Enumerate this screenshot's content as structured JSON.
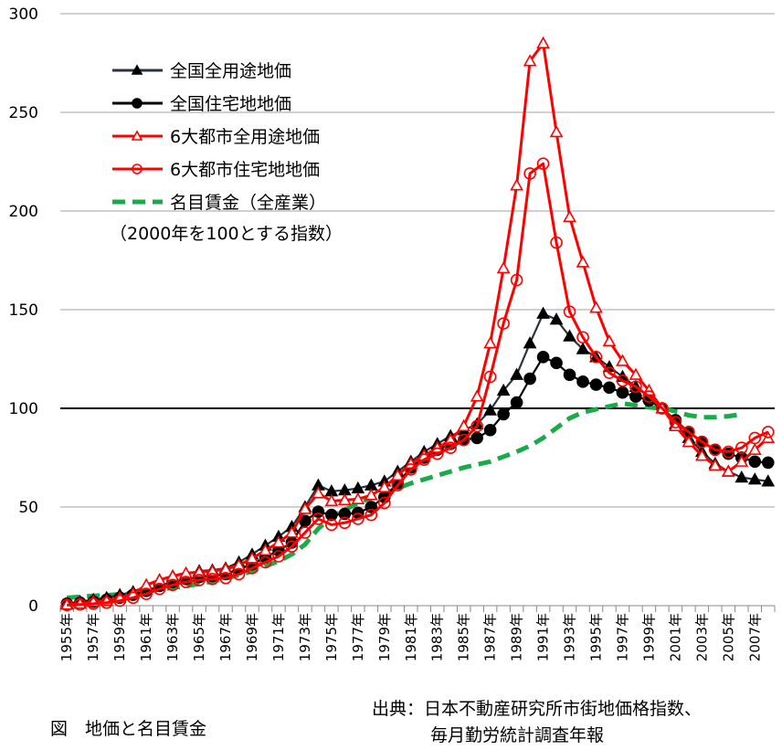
{
  "chart_data": {
    "type": "line",
    "title": "図　地価と名目賃金",
    "note": "（2000年を100とする指数）",
    "source_line1": "出典：日本不動産研究所市街地価格指数、",
    "source_line2": "毎月勤労統計調査年報",
    "xlabel": "",
    "ylabel": "",
    "ylim": [
      0,
      300
    ],
    "yticks": [
      "0",
      "50",
      "100",
      "150",
      "200",
      "250",
      "300"
    ],
    "ytick_values": [
      0,
      50,
      100,
      150,
      200,
      250,
      300
    ],
    "grid": true,
    "reference_line": 100,
    "legend_position": "top-left",
    "x": [
      1955,
      1956,
      1957,
      1958,
      1959,
      1960,
      1961,
      1962,
      1963,
      1964,
      1965,
      1966,
      1967,
      1968,
      1969,
      1970,
      1971,
      1972,
      1973,
      1974,
      1975,
      1976,
      1977,
      1978,
      1979,
      1980,
      1981,
      1982,
      1983,
      1984,
      1985,
      1986,
      1987,
      1988,
      1989,
      1990,
      1991,
      1992,
      1993,
      1994,
      1995,
      1996,
      1997,
      1998,
      1999,
      2000,
      2001,
      2002,
      2003,
      2004,
      2005,
      2006,
      2007,
      2008
    ],
    "xtick_labels": [
      "1955年",
      "1957年",
      "1959年",
      "1961年",
      "1963年",
      "1965年",
      "1967年",
      "1969年",
      "1971年",
      "1973年",
      "1975年",
      "1977年",
      "1979年",
      "1981年",
      "1983年",
      "1985年",
      "1987年",
      "1989年",
      "1991年",
      "1993年",
      "1995年",
      "1997年",
      "1999年",
      "2001年",
      "2003年",
      "2005年",
      "2007年"
    ],
    "series": [
      {
        "name": "全国全用途地価",
        "color": "#2b3340",
        "marker": "triangle-filled",
        "dashed": false,
        "values": [
          1,
          2,
          3,
          4,
          5.5,
          7,
          10,
          13,
          15,
          16,
          17.6,
          18,
          19,
          22,
          26,
          30.5,
          35,
          40,
          50,
          61,
          58,
          58.5,
          59.5,
          61,
          63,
          68,
          73,
          78,
          82,
          86,
          89,
          92,
          99,
          109,
          117,
          133,
          148,
          145,
          136.5,
          130,
          126,
          121,
          116,
          111,
          106,
          100,
          92,
          85,
          78,
          72,
          68,
          65,
          64,
          63
        ]
      },
      {
        "name": "全国住宅地地価",
        "color": "#000000",
        "marker": "circle-filled",
        "dashed": false,
        "values": [
          1,
          1.5,
          2,
          3,
          4,
          5.5,
          7.5,
          10,
          12,
          13.5,
          14.5,
          15,
          16,
          18.5,
          21,
          24.5,
          28,
          32,
          43,
          47.6,
          46,
          46.5,
          47,
          50,
          55,
          62,
          70,
          75,
          79,
          82,
          84,
          85,
          89,
          97,
          103,
          115,
          126,
          123,
          117,
          113.5,
          112,
          110.5,
          108,
          106,
          104,
          100,
          94,
          88,
          83,
          79,
          77,
          75,
          73,
          72.5
        ]
      },
      {
        "name": "6大都市全用途地価",
        "color": "#ff0000",
        "marker": "triangle-open",
        "dashed": false,
        "values": [
          0.5,
          1,
          2,
          2.5,
          4,
          6,
          10.5,
          13,
          15,
          16.5,
          17,
          17.5,
          18.5,
          20.5,
          24,
          28,
          32,
          37,
          49,
          57,
          53,
          53.5,
          54,
          56,
          60,
          66,
          72,
          76,
          80,
          84,
          91,
          106,
          133,
          171,
          213,
          276,
          285,
          240,
          197,
          174,
          151,
          134,
          124,
          117,
          109,
          100,
          91,
          83,
          76,
          71,
          68,
          73,
          79,
          85
        ]
      },
      {
        "name": "6大都市住宅地地価",
        "color": "#ff0000",
        "marker": "circle-open",
        "dashed": false,
        "values": [
          0.3,
          0.6,
          1,
          1.5,
          2.5,
          4,
          6,
          8.5,
          10.5,
          12,
          13,
          13.5,
          14,
          16,
          19,
          22,
          25,
          30,
          37,
          44,
          41,
          42,
          44,
          46,
          52,
          61,
          69,
          74,
          77,
          80,
          84,
          91,
          116,
          143,
          165,
          219,
          224,
          184,
          149,
          136,
          126,
          118,
          114,
          111,
          106,
          100,
          93,
          88,
          83,
          79,
          78,
          80,
          85,
          88
        ]
      },
      {
        "name": "名目賃金（全産業）",
        "color": "#1aaa4a",
        "marker": "none",
        "dashed": true,
        "values": [
          4,
          4.5,
          5,
          5.3,
          5.8,
          6.5,
          7.3,
          8.2,
          9,
          10,
          11,
          12.3,
          13.8,
          15.5,
          17.5,
          20,
          22.5,
          26,
          31,
          39,
          45,
          48.5,
          52,
          54.5,
          57,
          59.5,
          62,
          64,
          66,
          68,
          70,
          71.5,
          73,
          75.5,
          78,
          81,
          85,
          90,
          95,
          98,
          99.5,
          101,
          102.5,
          101.5,
          100.5,
          100,
          98.5,
          96.5,
          95.5,
          95.5,
          96,
          97,
          null,
          null
        ]
      }
    ]
  }
}
